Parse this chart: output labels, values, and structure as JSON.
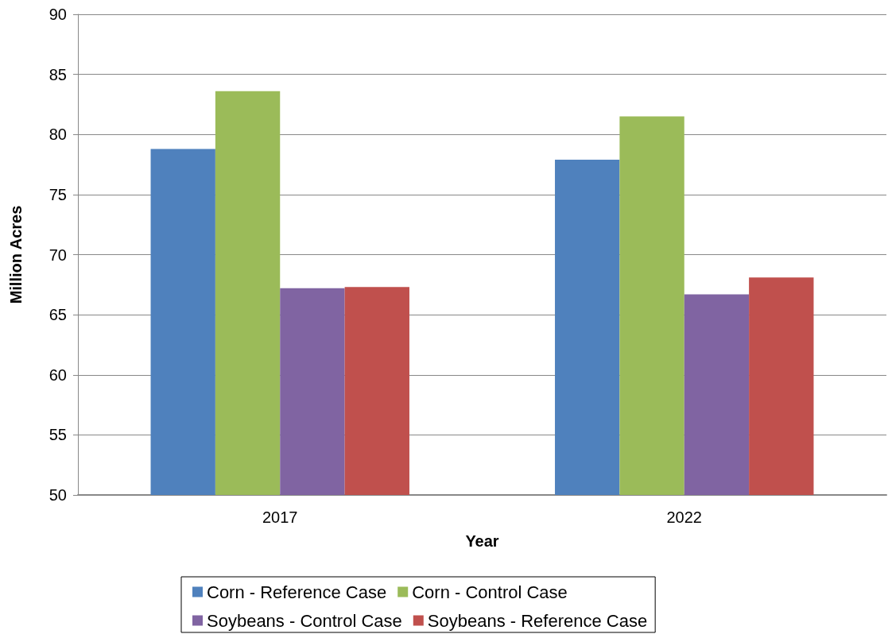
{
  "chart_data": {
    "type": "bar",
    "xlabel": "Year",
    "ylabel": "Million Acres",
    "categories": [
      "2017",
      "2022"
    ],
    "series": [
      {
        "name": "Corn - Reference Case",
        "color": "#4f81bd",
        "values": [
          78.8,
          77.9
        ]
      },
      {
        "name": "Corn - Control Case",
        "color": "#9bbb59",
        "values": [
          83.6,
          81.5
        ]
      },
      {
        "name": "Soybeans - Control Case",
        "color": "#8064a2",
        "values": [
          67.2,
          66.7
        ]
      },
      {
        "name": "Soybeans - Reference Case",
        "color": "#c0504d",
        "values": [
          67.3,
          68.1
        ]
      }
    ],
    "ylim": [
      50,
      90
    ],
    "yticks": [
      50,
      55,
      60,
      65,
      70,
      75,
      80,
      85,
      90
    ],
    "grid": "y",
    "legend": "bottom"
  }
}
